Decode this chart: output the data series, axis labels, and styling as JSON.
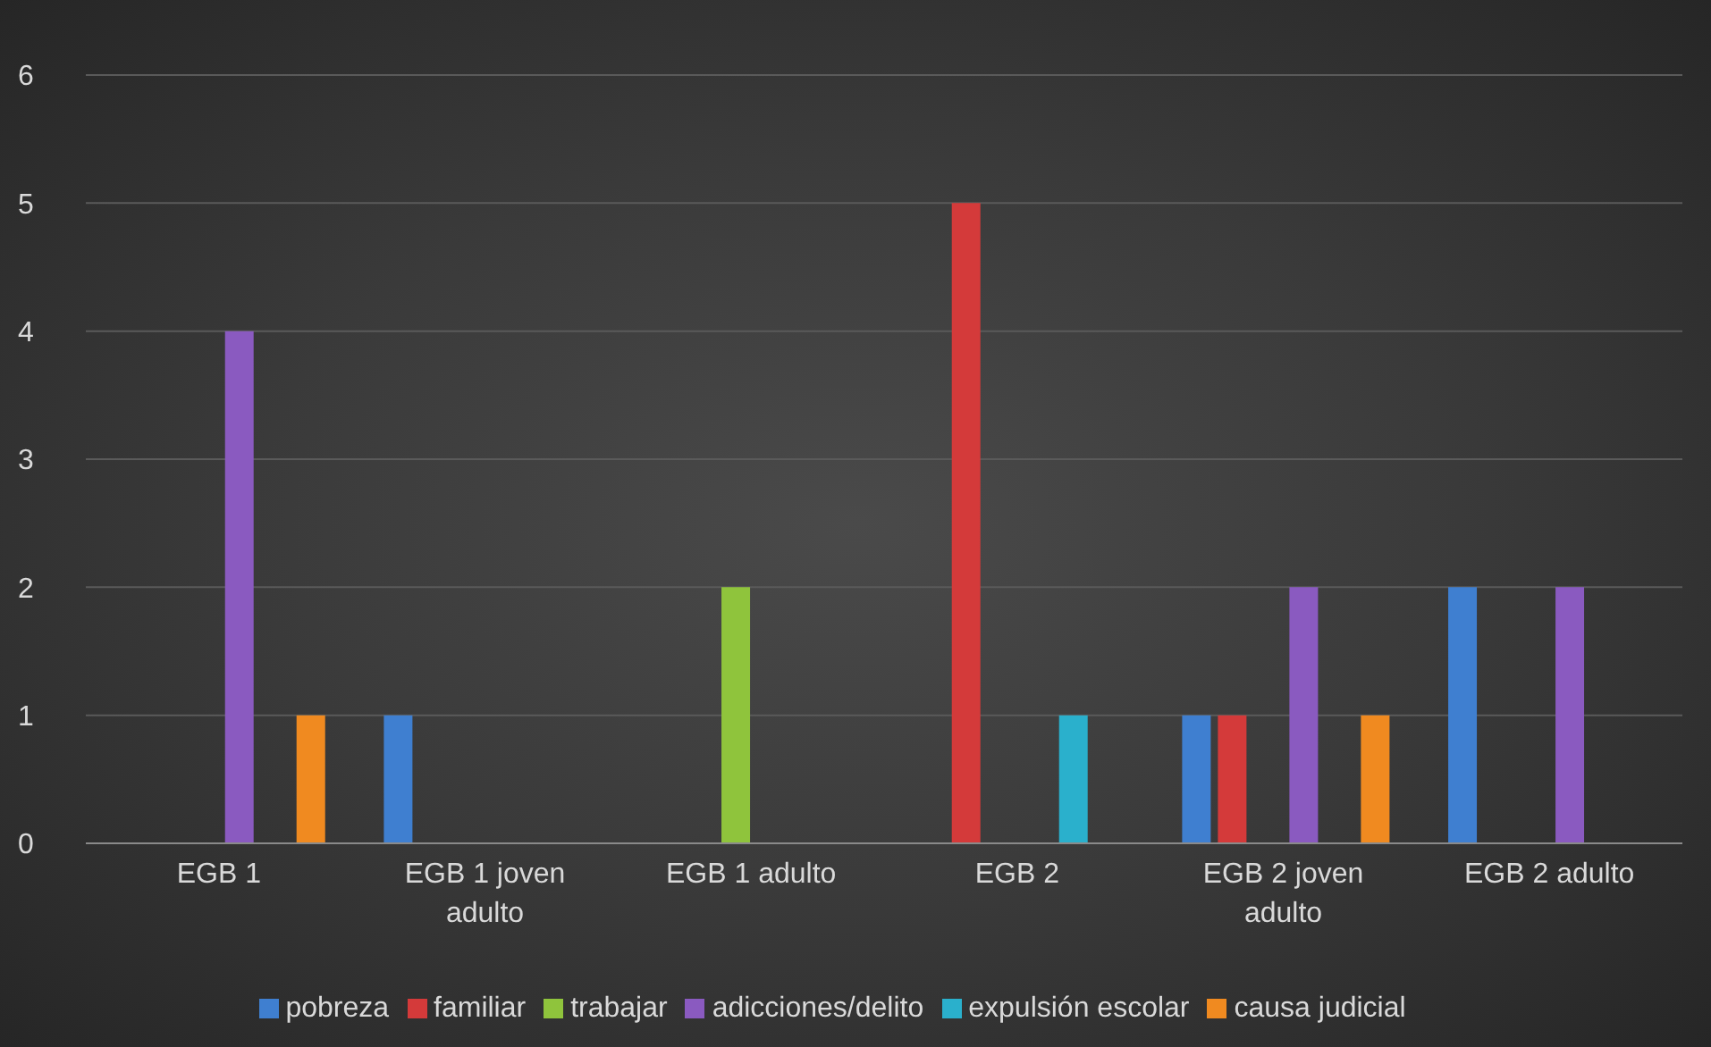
{
  "chart_data": {
    "type": "bar",
    "categories": [
      "EGB 1",
      "EGB 1 joven adulto",
      "EGB 1 adulto",
      "EGB 2",
      "EGB 2 joven adulto",
      "EGB 2 adulto"
    ],
    "series": [
      {
        "name": "pobreza",
        "color": "#3f7fd0",
        "values": [
          0,
          1,
          0,
          0,
          1,
          2
        ]
      },
      {
        "name": "familiar",
        "color": "#d43a3a",
        "values": [
          0,
          0,
          0,
          5,
          1,
          0
        ]
      },
      {
        "name": "trabajar",
        "color": "#8fc43c",
        "values": [
          0,
          0,
          2,
          0,
          0,
          0
        ]
      },
      {
        "name": "adicciones/delito",
        "color": "#8a5ac0",
        "values": [
          4,
          0,
          0,
          0,
          2,
          2
        ]
      },
      {
        "name": "expulsión escolar",
        "color": "#2ab0cc",
        "values": [
          0,
          0,
          0,
          1,
          0,
          0
        ]
      },
      {
        "name": "causa judicial",
        "color": "#f08a20",
        "values": [
          1,
          0,
          0,
          0,
          1,
          0
        ]
      }
    ],
    "ylim": [
      0,
      6
    ],
    "yticks": [
      0,
      1,
      2,
      3,
      4,
      5,
      6
    ],
    "grid": "y",
    "legend": "bottom"
  }
}
